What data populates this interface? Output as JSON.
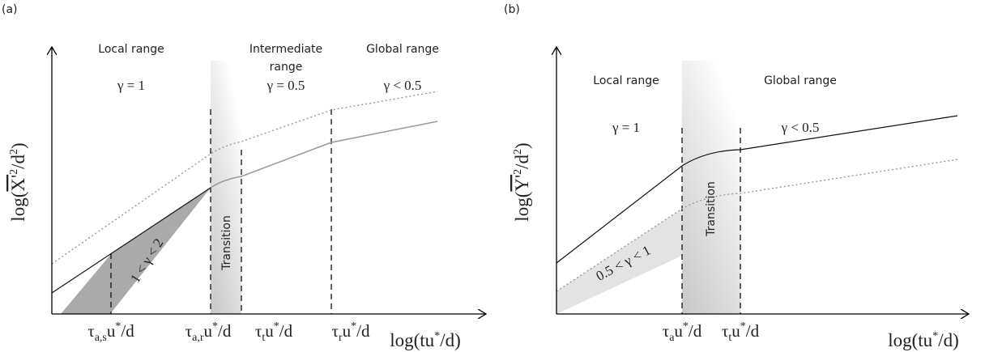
{
  "panel_a": {
    "label": "(a)",
    "y_axis": {
      "open": "log(",
      "var": "X'",
      "exp": "2",
      "denom": "/d",
      "denom_exp": "2",
      "close": ")"
    },
    "x_axis": {
      "base": "log(tu",
      "sup": "*",
      "tail": "/d)"
    },
    "regions": [
      {
        "name": [
          "Local range"
        ],
        "gamma": "γ = 1"
      },
      {
        "name": [
          "Intermediate",
          "range"
        ],
        "gamma": "γ = 0.5"
      },
      {
        "name": [
          "Global range"
        ],
        "gamma": "γ < 0.5"
      }
    ],
    "transition": "Transition",
    "slope_label": "1 < γ < 2",
    "ticks": [
      {
        "sym": "τ",
        "sub": "a,s",
        "base": "u",
        "sup": "*",
        "tail": "/d"
      },
      {
        "sym": "τ",
        "sub": "a,r",
        "base": "u",
        "sup": "*",
        "tail": "/d"
      },
      {
        "sym": "τ",
        "sub": "t",
        "base": "u",
        "sup": "*",
        "tail": "/d"
      },
      {
        "sym": "τ",
        "sub": "r",
        "base": "u",
        "sup": "*",
        "tail": "/d"
      }
    ]
  },
  "panel_b": {
    "label": "(b)",
    "y_axis": {
      "open": "log(",
      "var": "Y'",
      "exp": "2",
      "denom": "/d",
      "denom_exp": "2",
      "close": ")"
    },
    "x_axis": {
      "base": "log(tu",
      "sup": "*",
      "tail": "/d)"
    },
    "regions": [
      {
        "name": [
          "Local range"
        ],
        "gamma": "γ = 1"
      },
      {
        "name": [
          "Global range"
        ],
        "gamma": "γ < 0.5"
      }
    ],
    "transition": "Transition",
    "slope_label": "0.5 < γ < 1",
    "ticks": [
      {
        "sym": "τ",
        "sub": "a",
        "base": "u",
        "sup": "*",
        "tail": "/d"
      },
      {
        "sym": "τ",
        "sub": "t",
        "base": "u",
        "sup": "*",
        "tail": "/d"
      }
    ]
  }
}
